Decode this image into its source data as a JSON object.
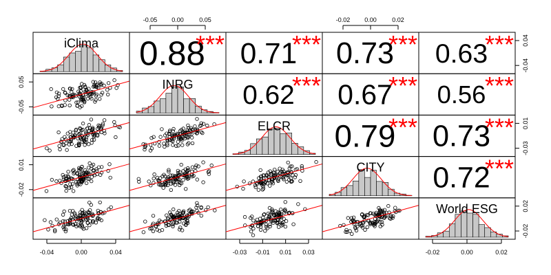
{
  "chart_data": {
    "type": "scatter",
    "title": "",
    "variables": [
      "iClima",
      "INRG",
      "ELCR",
      "CITY",
      "World ESG"
    ],
    "correlations": [
      {
        "row": 0,
        "col": 1,
        "value": "0.88",
        "r": 0.88,
        "stars": "***"
      },
      {
        "row": 0,
        "col": 2,
        "value": "0.71",
        "r": 0.71,
        "stars": "***"
      },
      {
        "row": 0,
        "col": 3,
        "value": "0.73",
        "r": 0.73,
        "stars": "***"
      },
      {
        "row": 0,
        "col": 4,
        "value": "0.63",
        "r": 0.63,
        "stars": "***"
      },
      {
        "row": 1,
        "col": 2,
        "value": "0.62",
        "r": 0.62,
        "stars": "***"
      },
      {
        "row": 1,
        "col": 3,
        "value": "0.67",
        "r": 0.67,
        "stars": "***"
      },
      {
        "row": 1,
        "col": 4,
        "value": "0.56",
        "r": 0.56,
        "stars": "***"
      },
      {
        "row": 2,
        "col": 3,
        "value": "0.79",
        "r": 0.79,
        "stars": "***"
      },
      {
        "row": 2,
        "col": 4,
        "value": "0.73",
        "r": 0.73,
        "stars": "***"
      },
      {
        "row": 3,
        "col": 4,
        "value": "0.72",
        "r": 0.72,
        "stars": "***"
      }
    ],
    "axes": {
      "top": [
        {
          "col": 1,
          "ticks": [
            "-0.05",
            "0.00",
            "0.05"
          ]
        },
        {
          "col": 3,
          "ticks": [
            "-0.02",
            "0.00",
            "0.02"
          ]
        }
      ],
      "bottom": [
        {
          "col": 0,
          "ticks": [
            "-0.04",
            "0.00",
            "0.04"
          ]
        },
        {
          "col": 2,
          "ticks": [
            "-0.03",
            "-0.01",
            "0.01",
            "0.03"
          ]
        },
        {
          "col": 4,
          "ticks": [
            "-0.02",
            "0.00",
            "0.02"
          ]
        }
      ],
      "left": [
        {
          "row": 1,
          "ticks": [
            "-0.05",
            "0.05"
          ]
        },
        {
          "row": 3,
          "ticks": [
            "-0.02",
            "0.01"
          ]
        }
      ],
      "right": [
        {
          "row": 0,
          "ticks": [
            "-0.04",
            "0.04"
          ]
        },
        {
          "row": 2,
          "ticks": [
            "-0.03",
            "0.01"
          ]
        },
        {
          "row": 4,
          "ticks": [
            "-0.02",
            "0.02"
          ]
        }
      ]
    },
    "colors": {
      "fit_line": "#ff0000",
      "stars": "#ff0000",
      "hist_fill": "#c8c8c8",
      "points": "#000000"
    }
  }
}
